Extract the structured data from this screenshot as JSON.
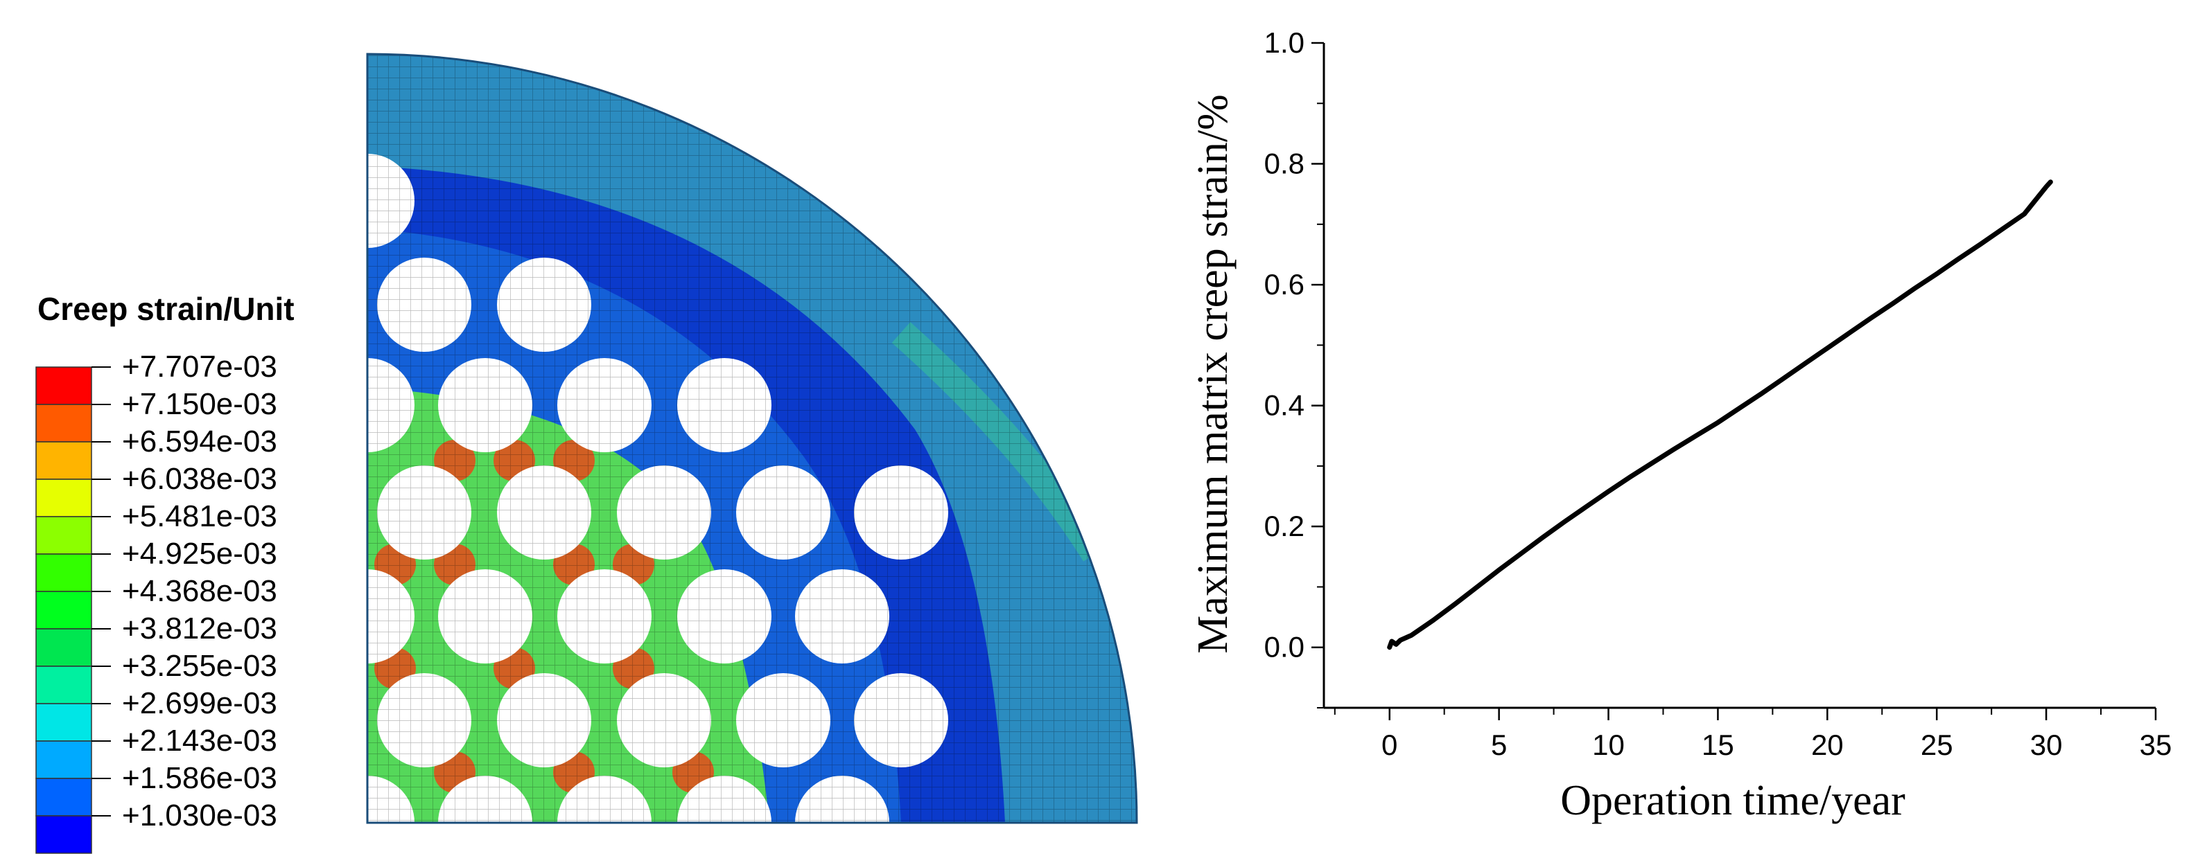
{
  "chart_data": [
    {
      "type": "heatmap",
      "title": "",
      "legend_title": "Creep strain/Unit",
      "legend_levels": [
        {
          "label": "+7.707e-03",
          "color": "#ff0000"
        },
        {
          "label": "+7.150e-03",
          "color": "#ff5a00"
        },
        {
          "label": "+6.594e-03",
          "color": "#ffb400"
        },
        {
          "label": "+6.038e-03",
          "color": "#e6ff00"
        },
        {
          "label": "+5.481e-03",
          "color": "#8cff00"
        },
        {
          "label": "+4.925e-03",
          "color": "#32ff00"
        },
        {
          "label": "+4.368e-03",
          "color": "#00ff1e"
        },
        {
          "label": "+3.812e-03",
          "color": "#00e650"
        },
        {
          "label": "+3.255e-03",
          "color": "#00f0a0"
        },
        {
          "label": "+2.699e-03",
          "color": "#00e6e6"
        },
        {
          "label": "+2.143e-03",
          "color": "#00aaff"
        },
        {
          "label": "+1.586e-03",
          "color": "#0064ff"
        },
        {
          "label": "+1.030e-03",
          "color": "#0000ff"
        }
      ]
    },
    {
      "type": "line",
      "title": "",
      "xlabel": "Operation time/year",
      "ylabel": "Maximum matrix creep strain/%",
      "xlim": [
        -3,
        35
      ],
      "ylim": [
        -0.1,
        1.0
      ],
      "xticks": [
        0,
        5,
        10,
        15,
        20,
        25,
        30,
        35
      ],
      "yticks": [
        0.0,
        0.2,
        0.4,
        0.6,
        0.8,
        1.0
      ],
      "grid": false,
      "series": [
        {
          "color": "#000000",
          "x": [
            0,
            0.1,
            0.3,
            0.5,
            1,
            2,
            3,
            4,
            5,
            6,
            7,
            8,
            9,
            10,
            11,
            12,
            13,
            14,
            15,
            16,
            17,
            18,
            19,
            20,
            21,
            22,
            23,
            24,
            25,
            26,
            27,
            28,
            29,
            30,
            30.2
          ],
          "y": [
            0.0,
            0.01,
            0.005,
            0.012,
            0.02,
            0.045,
            0.072,
            0.1,
            0.128,
            0.155,
            0.182,
            0.208,
            0.233,
            0.258,
            0.282,
            0.305,
            0.328,
            0.35,
            0.372,
            0.396,
            0.42,
            0.445,
            0.47,
            0.495,
            0.52,
            0.545,
            0.569,
            0.594,
            0.618,
            0.643,
            0.667,
            0.692,
            0.717,
            0.762,
            0.77
          ]
        }
      ]
    }
  ]
}
